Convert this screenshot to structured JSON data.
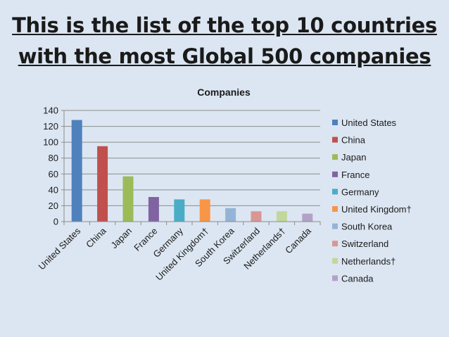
{
  "slide": {
    "title_line1": "This is the list of the top 10 countries",
    "title_line2": "with the most Global 500 companies"
  },
  "chart_data": {
    "type": "bar",
    "title": "Companies",
    "categories": [
      "United States",
      "China",
      "Japan",
      "France",
      "Germany",
      "United Kingdom†",
      "South Korea",
      "Switzerland",
      "Netherlands†",
      "Canada"
    ],
    "values": [
      128,
      95,
      57,
      31,
      28,
      28,
      17,
      13,
      13,
      10
    ],
    "colors": [
      "#4f81bd",
      "#c0504d",
      "#9bbb59",
      "#8064a2",
      "#4bacc6",
      "#f79646",
      "#95b3d7",
      "#d99694",
      "#c3d69b",
      "#b3a2c7"
    ],
    "ylim": [
      0,
      140
    ],
    "yticks": [
      0,
      20,
      40,
      60,
      80,
      100,
      120,
      140
    ],
    "grid": true,
    "legend_position": "right",
    "legend_entries": [
      "United States",
      "China",
      "Japan",
      "France",
      "Germany",
      "United Kingdom†",
      "South Korea",
      " Switzerland",
      "Netherlands†",
      "Canada"
    ]
  }
}
